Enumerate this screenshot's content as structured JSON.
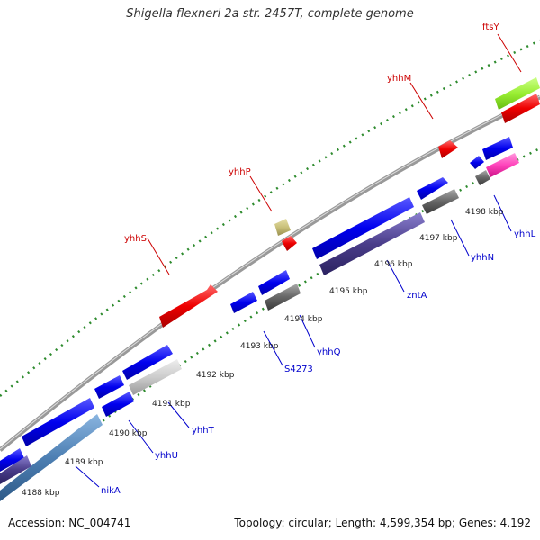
{
  "title": "Shigella flexneri 2a str. 2457T, complete genome",
  "footer": {
    "accession": "Accession: NC_004741",
    "summary": "Topology: circular; Length: 4,599,354 bp; Genes: 4,192"
  },
  "scale_labels": [
    "4188 kbp",
    "4189 kbp",
    "4190 kbp",
    "4191 kbp",
    "4192 kbp",
    "4193 kbp",
    "4194 kbp",
    "4195 kbp",
    "4196 kbp",
    "4197 kbp",
    "4198 kbp"
  ],
  "genes_top": [
    "ftsY",
    "yhhM",
    "yhhP",
    "yhhS"
  ],
  "genes_bottom": [
    "yhhL",
    "yhhN",
    "zntA",
    "yhhQ",
    "S4273",
    "yhhT",
    "yhhU",
    "nikA"
  ],
  "colors": {
    "forward_cds": "#ff0000",
    "reverse_cds": "#0000ff",
    "top_label": "#cc0000",
    "bottom_label": "#0000cc",
    "gc_dots": "#2e8b2e",
    "backbone": "#888888",
    "highlight_green": "#99ee33",
    "highlight_pink": "#ff44bb",
    "gray_feature": "#666666",
    "dark_feature": "#4a3d8a",
    "steel_feature": "#4d7fb3",
    "light_feature": "#cccccc",
    "tan_feature": "#c9c07a"
  }
}
